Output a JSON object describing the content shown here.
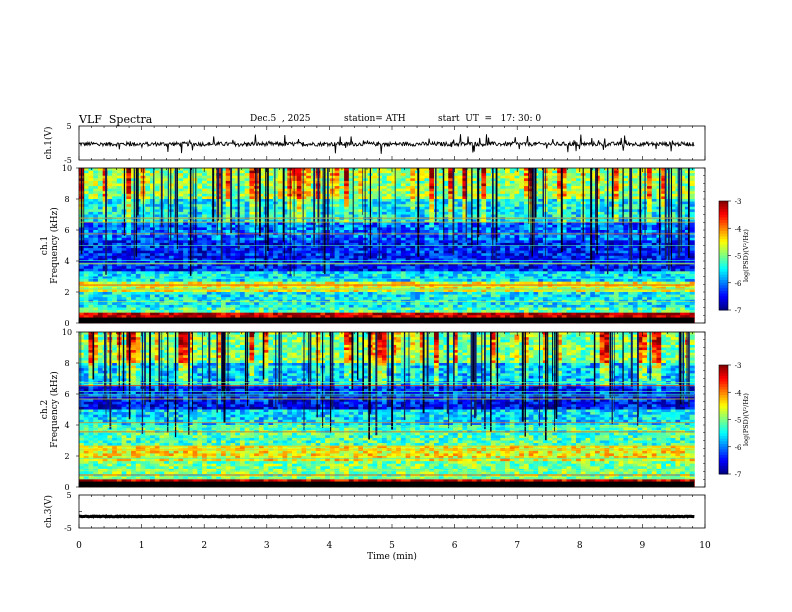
{
  "header": {
    "title": "VLF  Spectra",
    "date": "Dec.5  , 2025",
    "station": "station= ATH",
    "start": "start  UT  =   17: 30: 0"
  },
  "chart_data": [
    {
      "type": "line",
      "panel": "ch1-waveform",
      "ylabel": "ch.1(V)",
      "yticks": [
        "5",
        "-5"
      ],
      "ylim": [
        -5,
        5
      ],
      "description_values": {
        "baseline": -0.3,
        "noise_amplitude": 0.6,
        "spike_amplitude": 2.5
      },
      "color": "#000000"
    },
    {
      "type": "heatmap",
      "panel": "ch1-spectrogram",
      "ylabel": "Frequency  (kHz)",
      "ylabel2": "ch.1",
      "yticks": [
        "0",
        "2",
        "4",
        "6",
        "8",
        "10"
      ],
      "ylim": [
        0,
        10
      ],
      "colorbar": {
        "label": "log(PSD)(V²/Hz)",
        "ticks": [
          "-3",
          "-4",
          "-5",
          "-6",
          "-7"
        ],
        "range": [
          -7,
          -3
        ]
      },
      "bands_khz": [
        {
          "from": 0,
          "to": 0.6,
          "level": -3.2
        },
        {
          "from": 0.6,
          "to": 1.0,
          "level": -5.2
        },
        {
          "from": 1.0,
          "to": 2.0,
          "level": -5.5
        },
        {
          "from": 2.0,
          "to": 2.6,
          "level": -4.6
        },
        {
          "from": 2.6,
          "to": 3.3,
          "level": -5.6
        },
        {
          "from": 3.3,
          "to": 5.3,
          "level": -6.4
        },
        {
          "from": 5.3,
          "to": 6.5,
          "level": -6.1
        },
        {
          "from": 6.5,
          "to": 8.0,
          "level": -5.5
        },
        {
          "from": 8.0,
          "to": 10.0,
          "level": -4.9
        }
      ]
    },
    {
      "type": "heatmap",
      "panel": "ch2-spectrogram",
      "ylabel": "Frequency  (kHz)",
      "ylabel2": "ch.2",
      "yticks": [
        "0",
        "2",
        "4",
        "6",
        "8",
        "10"
      ],
      "ylim": [
        0,
        10
      ],
      "colorbar": {
        "label": "log(PSD)(V²/Hz)",
        "ticks": [
          "-3",
          "-4",
          "-5",
          "-6",
          "-7"
        ],
        "range": [
          -7,
          -3
        ]
      },
      "bands_khz": [
        {
          "from": 0,
          "to": 0.5,
          "level": -3.3
        },
        {
          "from": 0.5,
          "to": 1.7,
          "level": -5.0
        },
        {
          "from": 1.7,
          "to": 2.6,
          "level": -4.5
        },
        {
          "from": 2.6,
          "to": 4.0,
          "level": -5.2
        },
        {
          "from": 4.0,
          "to": 5.0,
          "level": -5.6
        },
        {
          "from": 5.0,
          "to": 6.5,
          "level": -6.5
        },
        {
          "from": 6.5,
          "to": 8.0,
          "level": -5.7
        },
        {
          "from": 8.0,
          "to": 10.0,
          "level": -5.0
        }
      ]
    },
    {
      "type": "line",
      "panel": "ch3-waveform",
      "ylabel": "ch.3(V)",
      "yticks": [
        "5",
        "-5"
      ],
      "ylim": [
        -5,
        5
      ],
      "description_values": {
        "baseline": -1.5,
        "noise_amplitude": 0.1
      },
      "color": "#000000"
    }
  ],
  "xaxis": {
    "label": "Time  (min)",
    "ticks": [
      "0",
      "1",
      "2",
      "3",
      "4",
      "5",
      "6",
      "7",
      "8",
      "9",
      "10"
    ],
    "xlim": [
      0,
      10
    ],
    "data_end": 9.83
  }
}
